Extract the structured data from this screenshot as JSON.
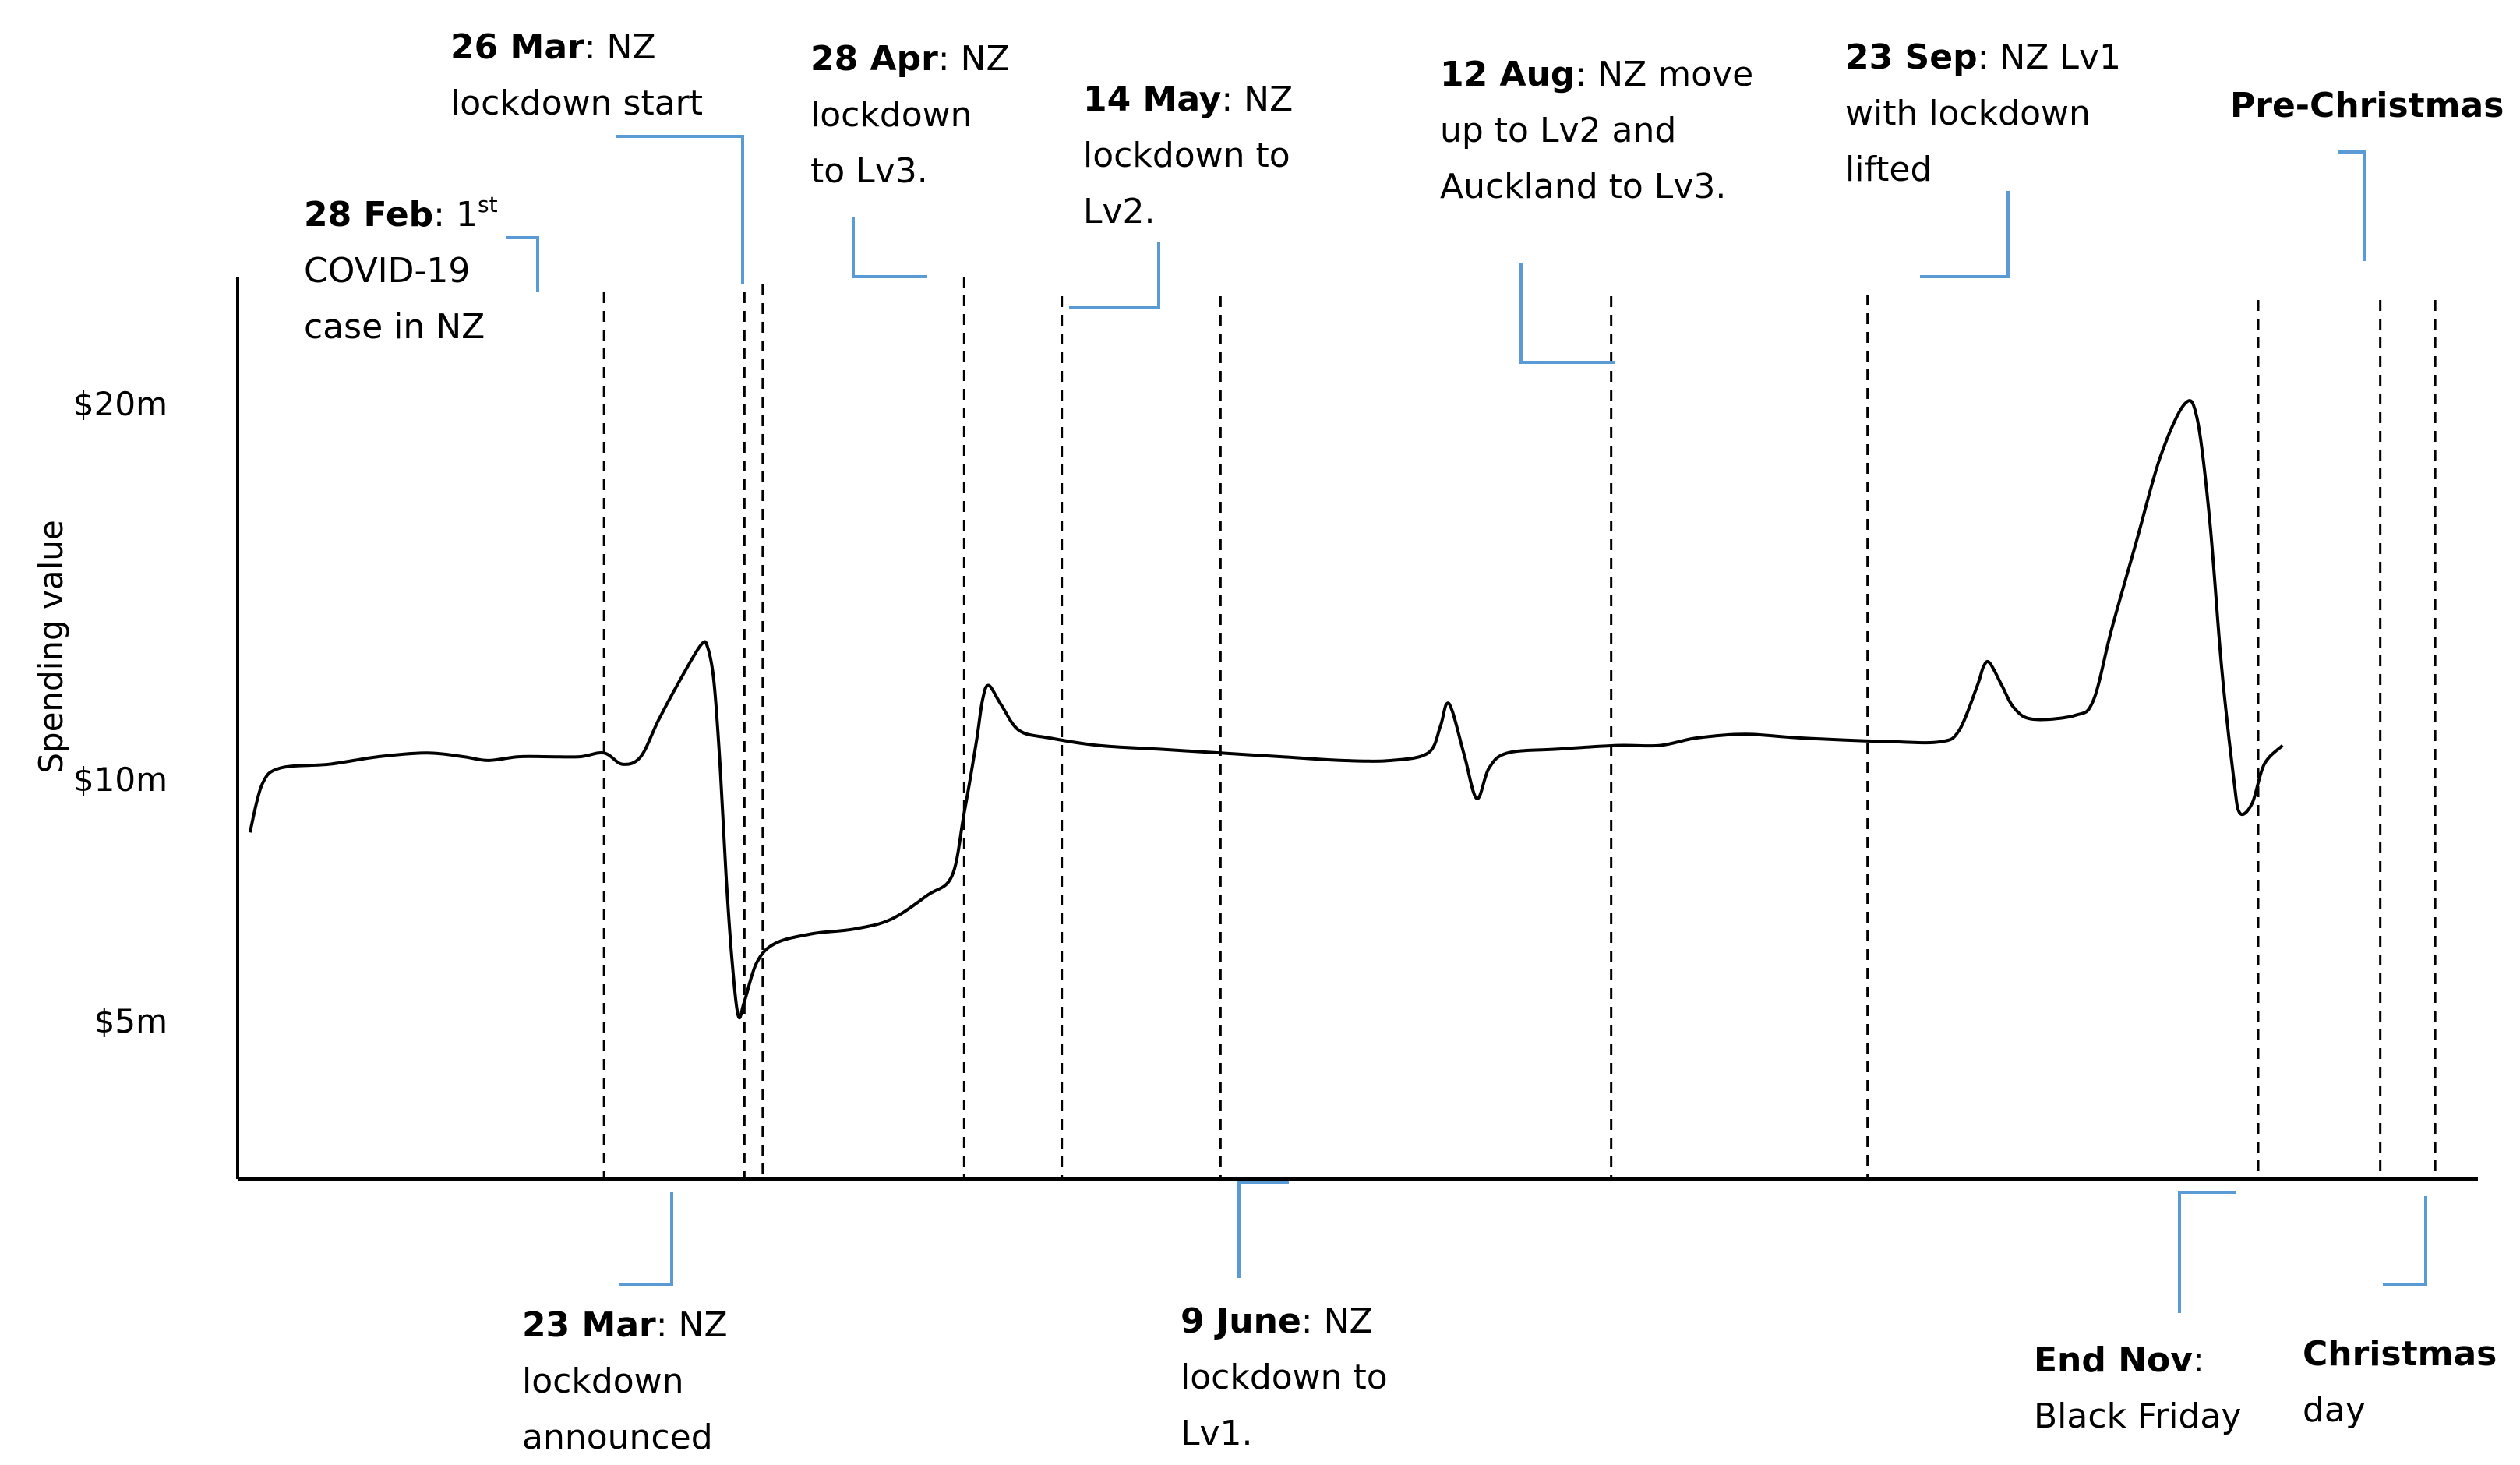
{
  "chart_data": {
    "type": "line",
    "title": "",
    "xlabel": "",
    "ylabel": "Spending value",
    "y_ticks": [
      {
        "label": "$20m",
        "value": 20
      },
      {
        "label": "$10m",
        "value": 10
      },
      {
        "label": "$5m",
        "value": 5
      }
    ],
    "series": [
      {
        "points": [
          [
            1,
            8.9
          ],
          [
            3,
            9.9
          ],
          [
            6,
            10.3
          ],
          [
            14,
            10.4
          ],
          [
            22,
            10.6
          ],
          [
            30,
            10.7
          ],
          [
            36,
            10.6
          ],
          [
            40,
            10.5
          ],
          [
            45,
            10.6
          ],
          [
            50,
            10.6
          ],
          [
            55,
            10.6
          ],
          [
            59,
            10.7
          ],
          [
            62,
            10.4
          ],
          [
            65,
            10.6
          ],
          [
            68,
            11.6
          ],
          [
            72,
            12.8
          ],
          [
            75,
            13.6
          ],
          [
            76,
            13.5
          ],
          [
            77,
            12.6
          ],
          [
            78,
            10.4
          ],
          [
            79,
            8.0
          ],
          [
            80,
            6.2
          ],
          [
            81,
            5.1
          ],
          [
            82,
            5.4
          ],
          [
            84,
            6.2
          ],
          [
            87,
            6.6
          ],
          [
            93,
            6.8
          ],
          [
            100,
            6.9
          ],
          [
            106,
            7.1
          ],
          [
            112,
            7.6
          ],
          [
            116,
            8.0
          ],
          [
            118,
            9.3
          ],
          [
            120,
            11.0
          ],
          [
            121,
            12.1
          ],
          [
            122,
            12.5
          ],
          [
            124,
            12.0
          ],
          [
            127,
            11.3
          ],
          [
            132,
            11.1
          ],
          [
            140,
            10.9
          ],
          [
            150,
            10.8
          ],
          [
            160,
            10.7
          ],
          [
            170,
            10.6
          ],
          [
            180,
            10.5
          ],
          [
            188,
            10.5
          ],
          [
            194,
            10.7
          ],
          [
            196,
            11.4
          ],
          [
            197,
            12.0
          ],
          [
            198,
            11.8
          ],
          [
            200,
            10.6
          ],
          [
            202,
            9.6
          ],
          [
            204,
            10.3
          ],
          [
            207,
            10.7
          ],
          [
            215,
            10.8
          ],
          [
            225,
            10.9
          ],
          [
            232,
            10.9
          ],
          [
            238,
            11.1
          ],
          [
            246,
            11.2
          ],
          [
            255,
            11.1
          ],
          [
            270,
            11.0
          ],
          [
            278,
            11.0
          ],
          [
            281,
            11.3
          ],
          [
            284,
            12.5
          ],
          [
            285,
            13.0
          ],
          [
            286,
            13.1
          ],
          [
            288,
            12.5
          ],
          [
            290,
            11.9
          ],
          [
            293,
            11.6
          ],
          [
            300,
            11.7
          ],
          [
            303,
            12.1
          ],
          [
            306,
            14.0
          ],
          [
            310,
            16.3
          ],
          [
            314,
            18.6
          ],
          [
            318,
            20.0
          ],
          [
            320,
            19.6
          ],
          [
            322,
            17.0
          ],
          [
            324,
            13.0
          ],
          [
            326,
            10.0
          ],
          [
            327,
            9.3
          ],
          [
            329,
            9.5
          ],
          [
            331,
            10.4
          ],
          [
            334,
            10.9
          ]
        ]
      }
    ],
    "events": [
      {
        "date": "28 Feb",
        "day": 59,
        "text": ": 1",
        "sup": "st",
        "lines": [
          "COVID-19",
          "case in NZ"
        ],
        "side": "top"
      },
      {
        "date": "23 Mar",
        "day": 82,
        "text": ": NZ",
        "lines": [
          "lockdown",
          "announced"
        ],
        "side": "bottom"
      },
      {
        "date": "26 Mar",
        "day": 85,
        "text": ": NZ",
        "lines": [
          "lockdown start"
        ],
        "side": "top"
      },
      {
        "date": "28 Apr",
        "day": 118,
        "text": ": NZ",
        "lines": [
          "lockdown",
          "to Lv3."
        ],
        "side": "top"
      },
      {
        "date": "14 May",
        "day": 134,
        "text": ": NZ",
        "lines": [
          "lockdown to",
          "Lv2."
        ],
        "side": "top"
      },
      {
        "date": "9 June",
        "day": 160,
        "text": ": NZ",
        "lines": [
          "lockdown to",
          "Lv1."
        ],
        "side": "bottom"
      },
      {
        "date": "12 Aug",
        "day": 224,
        "text": ": NZ move",
        "lines": [
          "up to Lv2 and",
          "Auckland to Lv3."
        ],
        "side": "top"
      },
      {
        "date": "23 Sep",
        "day": 266,
        "text": ":  NZ Lv1",
        "lines": [
          "with lockdown",
          "lifted"
        ],
        "side": "top"
      },
      {
        "date": "End Nov",
        "day": 330,
        "text": ":",
        "lines": [
          "Black Friday"
        ],
        "side": "bottom"
      },
      {
        "date": "Pre-Christmas",
        "day": 350,
        "text": "",
        "lines": [],
        "side": "top"
      },
      {
        "date": "Christmas",
        "day": 359,
        "text": "",
        "lines": [
          "day"
        ],
        "side": "bottom"
      }
    ],
    "grid": false,
    "legend": "none"
  },
  "colors": {
    "line": "#000000",
    "axis": "#000000",
    "event_line": "#000000",
    "callout": "#5b9bd5",
    "text": "#000000"
  }
}
